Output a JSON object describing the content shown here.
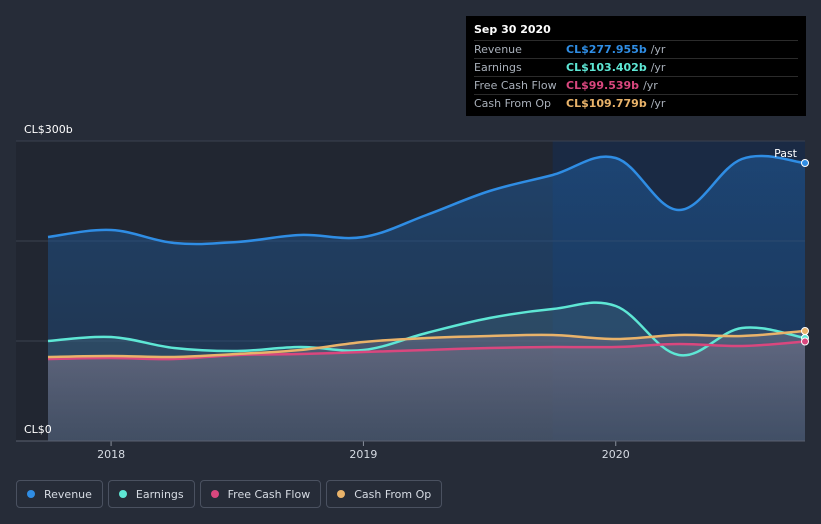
{
  "tooltip": {
    "date": "Sep 30 2020",
    "rows": [
      {
        "label": "Revenue",
        "value": "CL$277.955b",
        "unit": "/yr",
        "color": "#2f8de4"
      },
      {
        "label": "Earnings",
        "value": "CL$103.402b",
        "unit": "/yr",
        "color": "#5ee7d5"
      },
      {
        "label": "Free Cash Flow",
        "value": "CL$99.539b",
        "unit": "/yr",
        "color": "#d9477e"
      },
      {
        "label": "Cash From Op",
        "value": "CL$109.779b",
        "unit": "/yr",
        "color": "#e9b36a"
      }
    ]
  },
  "legend": [
    {
      "label": "Revenue",
      "color": "#2f8de4"
    },
    {
      "label": "Earnings",
      "color": "#5ee7d5"
    },
    {
      "label": "Free Cash Flow",
      "color": "#d9477e"
    },
    {
      "label": "Cash From Op",
      "color": "#e9b36a"
    }
  ],
  "chart_data": {
    "type": "area",
    "title": "",
    "xlabel": "",
    "ylabel": "",
    "y_tick_labels": [
      "CL$300b",
      "CL$0"
    ],
    "x_tick_labels": [
      "2018",
      "2019",
      "2020"
    ],
    "past_label": "Past",
    "xlim": [
      2017.75,
      2020.75
    ],
    "ylim": [
      0,
      300
    ],
    "past_start": 2019.75,
    "series": [
      {
        "name": "Revenue",
        "color": "#2f8de4",
        "x": [
          2017.75,
          2018.0,
          2018.25,
          2018.5,
          2018.75,
          2019.0,
          2019.25,
          2019.5,
          2019.75,
          2020.0,
          2020.25,
          2020.5,
          2020.75
        ],
        "values": [
          204,
          211,
          198,
          199,
          206,
          204,
          226,
          250,
          266,
          283,
          231,
          282,
          278
        ]
      },
      {
        "name": "Earnings",
        "color": "#5ee7d5",
        "x": [
          2017.75,
          2018.0,
          2018.25,
          2018.5,
          2018.75,
          2019.0,
          2019.25,
          2019.5,
          2019.75,
          2020.0,
          2020.25,
          2020.5,
          2020.75
        ],
        "values": [
          100,
          104,
          93,
          90,
          94,
          91,
          108,
          123,
          132,
          135,
          86,
          113,
          103
        ]
      },
      {
        "name": "Free Cash Flow",
        "color": "#d9477e",
        "x": [
          2017.75,
          2018.0,
          2018.25,
          2018.5,
          2018.75,
          2019.0,
          2019.25,
          2019.5,
          2019.75,
          2020.0,
          2020.25,
          2020.5,
          2020.75
        ],
        "values": [
          82,
          83,
          82,
          86,
          87,
          89,
          91,
          93,
          94,
          94,
          97,
          95,
          99.5
        ]
      },
      {
        "name": "Cash From Op",
        "color": "#e9b36a",
        "x": [
          2017.75,
          2018.0,
          2018.25,
          2018.5,
          2018.75,
          2019.0,
          2019.25,
          2019.5,
          2019.75,
          2020.0,
          2020.25,
          2020.5,
          2020.75
        ],
        "values": [
          84,
          85,
          84,
          87,
          91,
          99,
          103,
          105,
          106,
          102,
          106,
          105,
          110
        ]
      }
    ]
  }
}
